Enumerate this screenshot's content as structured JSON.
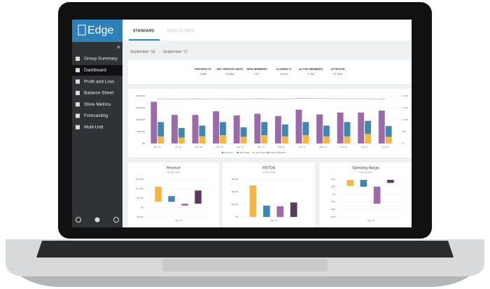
{
  "brand": "Edge",
  "tabs": [
    "STANDARD",
    "YEAR TO DATE"
  ],
  "nav": [
    "Group Summary",
    "Dashboard",
    "Profit and Loss",
    "Balance Sheet",
    "Store Metrics",
    "Forecasting",
    "Multi-Unit"
  ],
  "date_range": {
    "from": "September '16",
    "separator": "-",
    "to": "September '17"
  },
  "kpis": [
    {
      "label": "PROSPECTS",
      "value": "1,806"
    },
    {
      "label": "NET SERVICE UNITS",
      "value": "19,080"
    },
    {
      "label": "NEW MEMBERS",
      "value": "247"
    },
    {
      "label": "CLOSING %",
      "value": "13.9%"
    },
    {
      "label": "ACTIVE MEMBERS",
      "value": "1,755"
    },
    {
      "label": "ATTRITION",
      "value": "37.18%"
    }
  ],
  "main_chart": {
    "categories": [
      "Sep '16",
      "Oct '16",
      "Nov '16",
      "Dec '16",
      "Jan '17",
      "Feb '17",
      "Mar '17",
      "Apr '17",
      "May '17",
      "Jun '17",
      "Jul '17",
      "Aug '17"
    ],
    "series": [
      {
        "name": "Revenue",
        "color": "#9b6aa8",
        "values": [
          175000,
          120000,
          120000,
          135000,
          118000,
          125000,
          115000,
          142000,
          122000,
          130000,
          130000,
          138000
        ]
      },
      {
        "name": "Expenses",
        "color": "#3f86b0",
        "values": [
          60000,
          40000,
          45000,
          55000,
          40000,
          55000,
          50000,
          55000,
          45000,
          60000,
          55000,
          45000
        ]
      },
      {
        "name": "Cost of Service",
        "color": "#f5b544",
        "values": [
          30000,
          25000,
          30000,
          35000,
          28000,
          35000,
          30000,
          35000,
          30000,
          30000,
          40000,
          28000
        ]
      },
      {
        "name": "Active Members",
        "color": "#999999",
        "axis": "y2",
        "values": [
          1880,
          1870,
          1880,
          1860,
          1870,
          1880,
          1870,
          1900,
          1890,
          1880,
          1880,
          1870
        ]
      }
    ],
    "ylim": [
      0,
      200000
    ],
    "yticks": [
      {
        "value": 0,
        "label": "$0"
      },
      {
        "value": 50000,
        "label": "$50,000"
      },
      {
        "value": 100000,
        "label": "$100,000"
      },
      {
        "value": 150000,
        "label": "$150,000"
      },
      {
        "value": 200000,
        "label": "$200,000"
      }
    ],
    "y2lim": [
      0,
      2000
    ],
    "y2ticks": [
      0,
      500,
      {
        "value": 1000,
        "label": "1,000"
      },
      {
        "value": 1500,
        "label": "1,500"
      },
      {
        "value": 2000,
        "label": "2,000"
      }
    ]
  },
  "small_charts": [
    {
      "title": "Revenue",
      "subtitle": "Average Daily",
      "xlabel": "Sep '17",
      "ylim": [
        -5000,
        15000
      ],
      "yticks": [
        {
          "value": -5000,
          "label": "-$5,000"
        },
        {
          "value": 0,
          "label": "$0"
        },
        {
          "value": 5000,
          "label": "$5,000"
        },
        {
          "value": 10000,
          "label": "$10,000"
        },
        {
          "value": 15000,
          "label": "$15,000"
        }
      ],
      "bars": [
        {
          "low": 3000,
          "high": 11000,
          "color": "#f5b544"
        },
        {
          "low": 3000,
          "high": 6000,
          "color": "#3f86b0"
        },
        {
          "low": 1000,
          "high": 2000,
          "color": "#9b6aa8"
        },
        {
          "low": 2000,
          "high": 9000,
          "color": "#5a3a5e"
        }
      ]
    },
    {
      "title": "EBITDA",
      "subtitle": "Average Daily",
      "xlabel": "Sep '17",
      "ylim": [
        0,
        6000
      ],
      "yticks": [
        {
          "value": 0,
          "label": "$0"
        },
        {
          "value": 2000,
          "label": "$2,000"
        },
        {
          "value": 4000,
          "label": "$4,000"
        },
        {
          "value": 6000,
          "label": "$6,000"
        }
      ],
      "bars": [
        {
          "low": 0,
          "high": 5000,
          "color": "#f5b544"
        },
        {
          "low": 0,
          "high": 1800,
          "color": "#3f86b0"
        },
        {
          "low": 0,
          "high": 1700,
          "color": "#9b6aa8"
        },
        {
          "low": 0,
          "high": 2300,
          "color": "#5a3a5e"
        }
      ]
    },
    {
      "title": "Operating Margin",
      "subtitle": "Average Daily",
      "xlabel": "Sep '17",
      "ylim": [
        -60,
        40
      ],
      "yticks": [
        {
          "value": -60,
          "label": "-60%"
        },
        {
          "value": -40,
          "label": "-40%"
        },
        {
          "value": -20,
          "label": "-20%"
        },
        {
          "value": 0,
          "label": "0%"
        },
        {
          "value": 20,
          "label": "20%"
        },
        {
          "value": 40,
          "label": "40%"
        }
      ],
      "bars": [
        {
          "low": 22,
          "high": 38,
          "color": "#f5b544"
        },
        {
          "low": 20,
          "high": 38,
          "color": "#3f86b0"
        },
        {
          "low": -25,
          "high": 20,
          "color": "#9b6aa8"
        },
        {
          "low": 30,
          "high": 38,
          "color": "#5a3a5e"
        }
      ]
    }
  ]
}
